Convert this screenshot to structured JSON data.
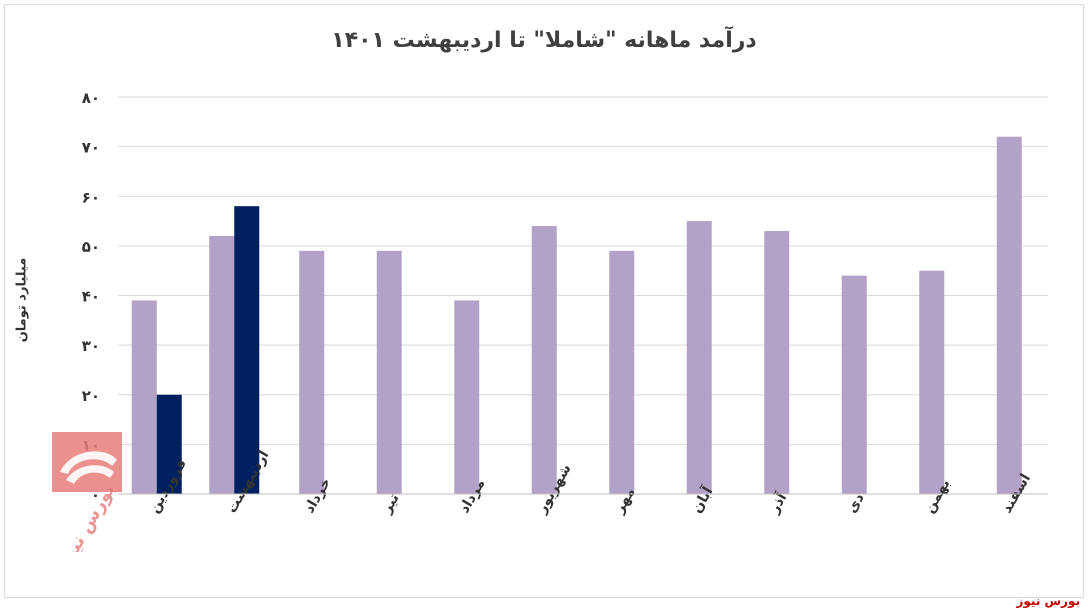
{
  "chart_data": {
    "type": "bar",
    "title": "درآمد ماهانه \"شاملا\" تا اردیبهشت ۱۴۰۱",
    "ylabel": "میلیارد تومان",
    "xlabel": "",
    "ylim": [
      0,
      80
    ],
    "yticks": [
      0,
      10,
      20,
      30,
      40,
      50,
      60,
      70,
      80
    ],
    "ytick_labels": [
      "۰",
      "۱۰",
      "۲۰",
      "۳۰",
      "۴۰",
      "۵۰",
      "۶۰",
      "۷۰",
      "۸۰"
    ],
    "grid": true,
    "legend": "none",
    "categories": [
      "فروردین",
      "اردیبهشت",
      "خرداد",
      "تیر",
      "مرداد",
      "شهریور",
      "مهر",
      "آبان",
      "آذر",
      "دی",
      "بهمن",
      "اسفند"
    ],
    "series": [
      {
        "color": "#b3a2c7",
        "values": [
          39,
          52,
          49,
          49,
          39,
          54,
          49,
          55,
          53,
          44,
          45,
          72
        ]
      },
      {
        "color": "#002060",
        "values": [
          20,
          58,
          null,
          null,
          null,
          null,
          null,
          null,
          null,
          null,
          null,
          null
        ]
      }
    ]
  },
  "watermark": {
    "text": "بورس نیوز"
  },
  "footer": {
    "brand": "بورس نیوز"
  }
}
